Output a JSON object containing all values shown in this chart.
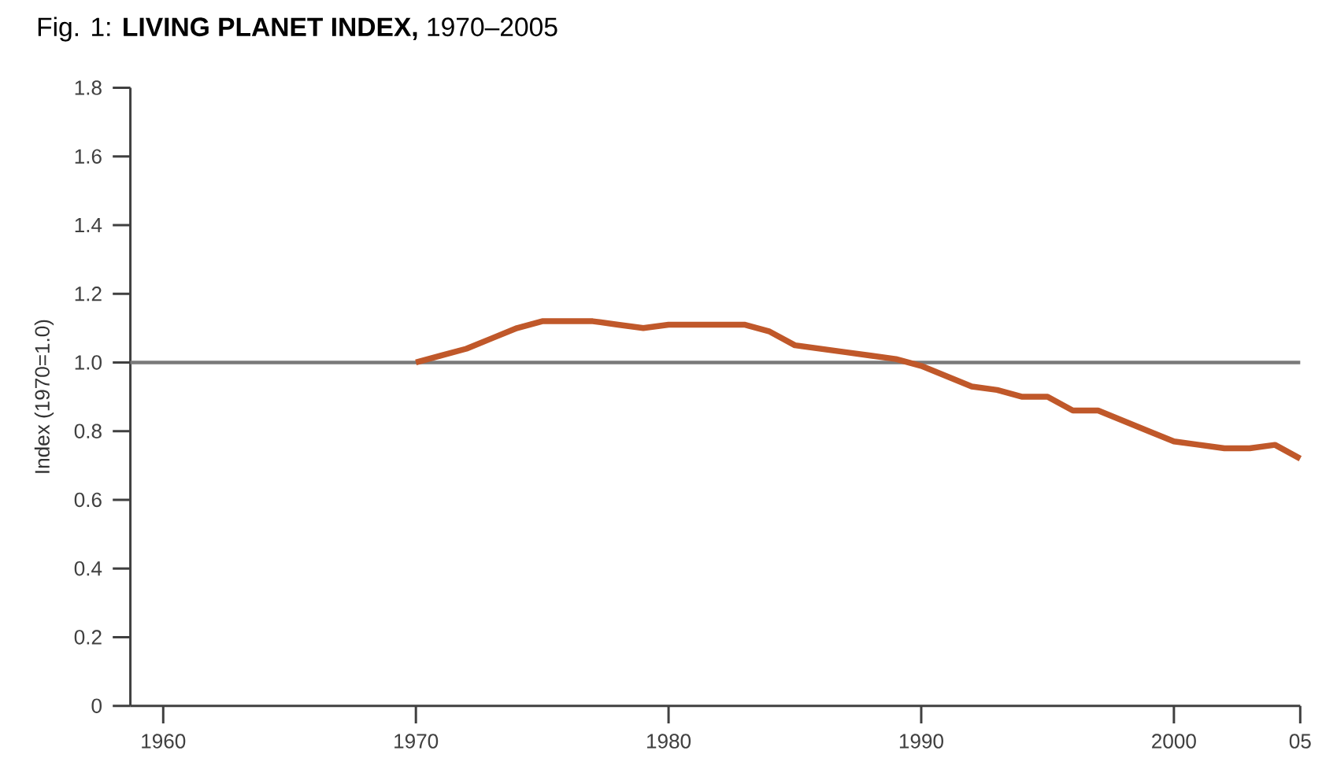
{
  "chart_data": {
    "type": "line",
    "title": "Fig. 1: **LIVING PLANET INDEX,** 1970–2005",
    "ylabel": "Index (1970=1.0)",
    "x": [
      1970,
      1971,
      1972,
      1973,
      1974,
      1975,
      1976,
      1977,
      1978,
      1979,
      1980,
      1981,
      1982,
      1983,
      1984,
      1985,
      1986,
      1987,
      1988,
      1989,
      1990,
      1991,
      1992,
      1993,
      1994,
      1995,
      1996,
      1997,
      1998,
      1999,
      2000,
      2001,
      2002,
      2003,
      2004,
      2005
    ],
    "series": [
      {
        "color": "#c0582a",
        "values": [
          1.0,
          1.02,
          1.04,
          1.07,
          1.1,
          1.12,
          1.12,
          1.12,
          1.11,
          1.1,
          1.11,
          1.11,
          1.11,
          1.11,
          1.09,
          1.05,
          1.04,
          1.03,
          1.02,
          1.01,
          0.99,
          0.96,
          0.93,
          0.92,
          0.9,
          0.9,
          0.86,
          0.86,
          0.83,
          0.8,
          0.77,
          0.76,
          0.75,
          0.75,
          0.76,
          0.72
        ]
      }
    ],
    "xlim": [
      1958.7,
      2005
    ],
    "ylim": [
      0,
      1.8
    ],
    "xticks": [
      1960,
      1970,
      1980,
      1990,
      2000,
      {
        "value": 2005,
        "label": "05"
      }
    ],
    "yticks": [
      0,
      {
        "value": 0.2,
        "label": "0.2"
      },
      {
        "value": 0.4,
        "label": "0.4"
      },
      {
        "value": 0.6,
        "label": "0.6"
      },
      {
        "value": 0.8,
        "label": "0.8"
      },
      {
        "value": 1.0,
        "label": "1.0"
      },
      {
        "value": 1.2,
        "label": "1.2"
      },
      {
        "value": 1.4,
        "label": "1.4"
      },
      {
        "value": 1.6,
        "label": "1.6"
      },
      {
        "value": 1.8,
        "label": "1.8"
      }
    ],
    "ref_lines": [
      {
        "axis": "y",
        "value": 1.0,
        "color": "#7a7a7a"
      }
    ],
    "grid": false,
    "marker": "none",
    "line_style": "solid"
  }
}
